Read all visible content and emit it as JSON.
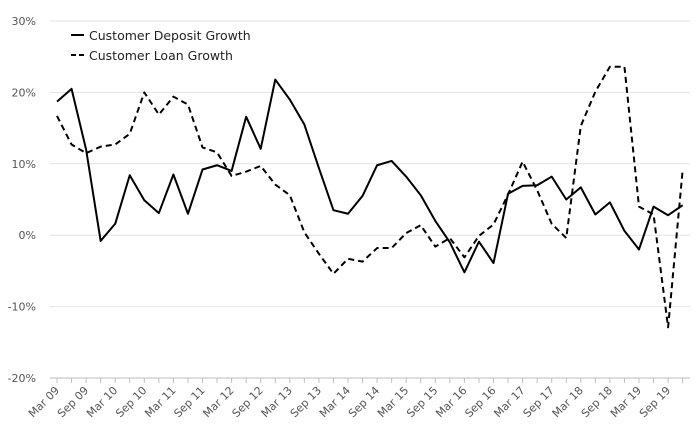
{
  "chart_data": {
    "type": "line",
    "title": "",
    "xlabel": "",
    "ylabel": "",
    "ylim": [
      -20,
      30
    ],
    "yticks": [
      -20,
      -10,
      0,
      10,
      20,
      30
    ],
    "ytick_labels": [
      "-20%",
      "-10%",
      "0%",
      "10%",
      "20%",
      "30%"
    ],
    "x_tick_labels": [
      "Mar 09",
      "Sep 09",
      "Mar 10",
      "Sep 10",
      "Mar 11",
      "Sep 11",
      "Mar 12",
      "Sep 12",
      "Mar 13",
      "Sep 13",
      "Mar 14",
      "Sep 14",
      "Mar 15",
      "Sep 15",
      "Mar 16",
      "Sep 16",
      "Mar 17",
      "Sep 17",
      "Mar 18",
      "Sep 18",
      "Mar 19",
      "Sep 19"
    ],
    "grid": "horizontal",
    "legend_position": "top-left",
    "x": [
      "Mar 09",
      "Jun 09",
      "Sep 09",
      "Dec 09",
      "Mar 10",
      "Jun 10",
      "Sep 10",
      "Dec 10",
      "Mar 11",
      "Jun 11",
      "Sep 11",
      "Dec 11",
      "Mar 12",
      "Jun 12",
      "Sep 12",
      "Dec 12",
      "Mar 13",
      "Jun 13",
      "Sep 13",
      "Dec 13",
      "Mar 14",
      "Jun 14",
      "Sep 14",
      "Dec 14",
      "Mar 15",
      "Jun 15",
      "Sep 15",
      "Dec 15",
      "Mar 16",
      "Jun 16",
      "Sep 16",
      "Dec 16",
      "Mar 17",
      "Jun 17",
      "Sep 17",
      "Dec 17",
      "Mar 18",
      "Jun 18",
      "Sep 18",
      "Dec 18",
      "Mar 19",
      "Jun 19",
      "Sep 19",
      "Dec 19"
    ],
    "series": [
      {
        "name": "Customer Deposit Growth",
        "style": "solid",
        "color": "#000000",
        "values": [
          18.7,
          20.5,
          12.0,
          -0.8,
          1.6,
          8.4,
          4.9,
          3.1,
          8.5,
          3.0,
          9.2,
          9.8,
          9.0,
          16.6,
          12.1,
          21.8,
          19.0,
          15.5,
          9.4,
          3.5,
          3.0,
          5.5,
          9.8,
          10.4,
          8.2,
          5.6,
          2.0,
          -1.0,
          -5.2,
          -0.9,
          -3.9,
          5.8,
          6.9,
          7.0,
          8.2,
          5.0,
          6.7,
          2.9,
          4.6,
          0.6,
          -2.0,
          4.0,
          2.8,
          4.2
        ]
      },
      {
        "name": "Customer Loan Growth",
        "style": "dashed",
        "color": "#000000",
        "values": [
          16.7,
          12.7,
          11.5,
          12.4,
          12.7,
          14.2,
          20.0,
          16.9,
          19.4,
          18.3,
          12.3,
          11.6,
          8.3,
          8.9,
          9.7,
          7.1,
          5.6,
          0.4,
          -2.6,
          -5.4,
          -3.3,
          -3.7,
          -1.8,
          -1.8,
          0.3,
          1.4,
          -1.6,
          -0.4,
          -3.1,
          -0.1,
          1.5,
          5.7,
          10.3,
          6.3,
          1.6,
          -0.4,
          15.3,
          20.1,
          23.6,
          23.6,
          4.0,
          2.9,
          -12.9,
          9.1
        ]
      }
    ]
  }
}
